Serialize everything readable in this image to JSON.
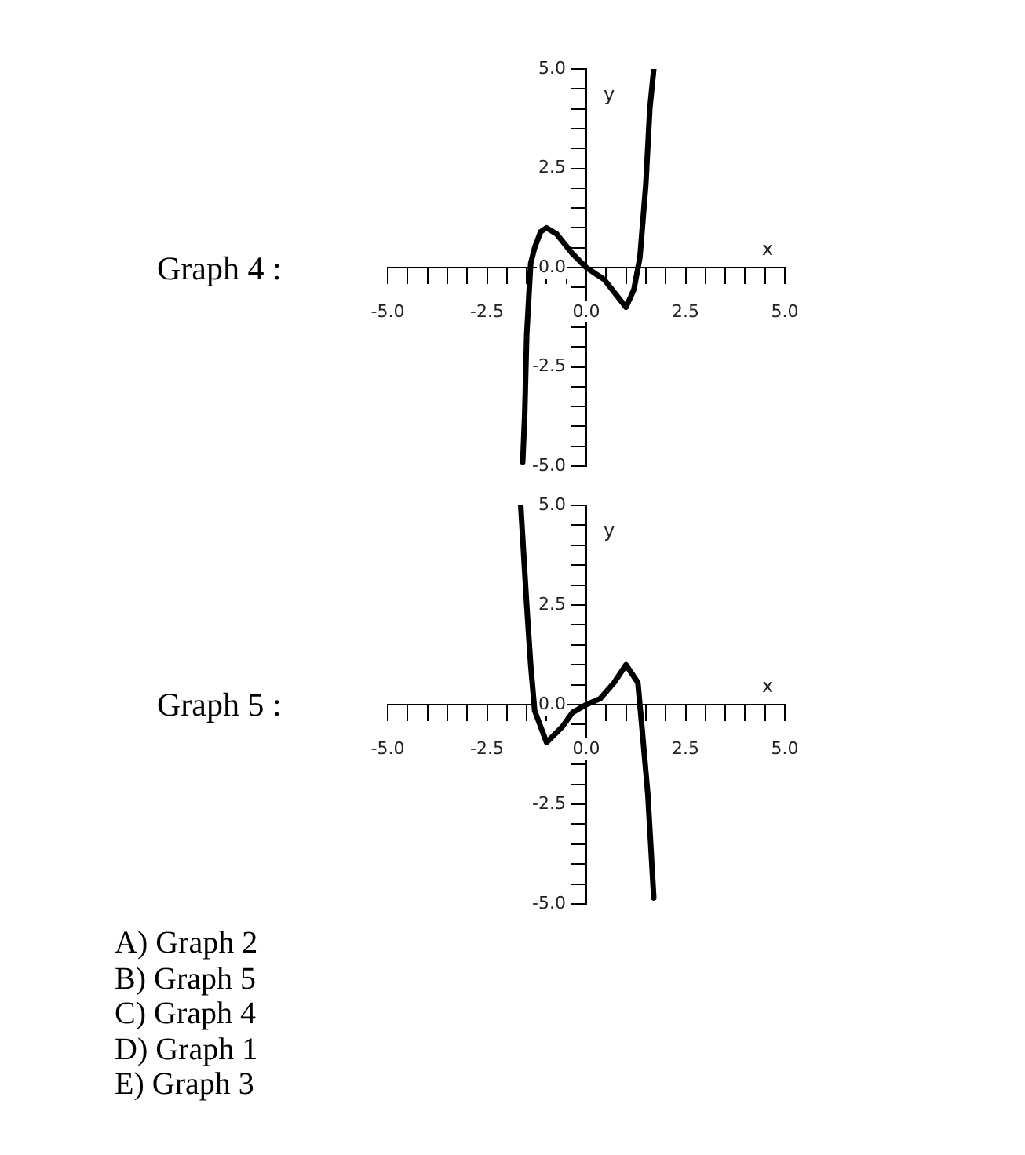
{
  "chart_data": [
    {
      "type": "line",
      "title": "Graph 4 :",
      "xlabel": "x",
      "ylabel": "y",
      "color": "#000000",
      "marker": "none",
      "line_style": "solid",
      "grid": false,
      "legend": false,
      "x": [
        -1.6,
        -1.55,
        -1.5,
        -1.4,
        -1.3,
        -1.15,
        -1.0,
        -0.75,
        -0.35,
        0,
        0.45,
        1.0,
        1.2,
        1.35,
        1.5,
        1.6,
        1.7
      ],
      "values": [
        -4.9,
        -3.7,
        -1.7,
        0.1,
        0.5,
        0.9,
        1.0,
        0.85,
        0.35,
        0,
        -0.3,
        -1.0,
        -0.55,
        0.25,
        2.1,
        4.0,
        5.0
      ],
      "xlim": [
        -5,
        5
      ],
      "ylim": [
        -5,
        5
      ],
      "xticks": [
        {
          "value": -5,
          "label": "-5.0"
        },
        {
          "value": -4.5,
          "label": null
        },
        {
          "value": -4,
          "label": null
        },
        {
          "value": -3.5,
          "label": null
        },
        {
          "value": -3,
          "label": null
        },
        {
          "value": -2.5,
          "label": "-2.5"
        },
        {
          "value": -2,
          "label": null
        },
        {
          "value": -1.5,
          "label": null
        },
        {
          "value": -1,
          "label": null
        },
        {
          "value": -0.5,
          "label": null
        },
        {
          "value": 0,
          "label": "0.0"
        },
        {
          "value": 0.5,
          "label": null
        },
        {
          "value": 1,
          "label": null
        },
        {
          "value": 1.5,
          "label": null
        },
        {
          "value": 2,
          "label": null
        },
        {
          "value": 2.5,
          "label": "2.5"
        },
        {
          "value": 3,
          "label": null
        },
        {
          "value": 3.5,
          "label": null
        },
        {
          "value": 4,
          "label": null
        },
        {
          "value": 4.5,
          "label": null
        },
        {
          "value": 5,
          "label": "5.0"
        }
      ],
      "yticks": [
        {
          "value": -5,
          "label": "-5.0"
        },
        {
          "value": -4.5,
          "label": null
        },
        {
          "value": -4,
          "label": null
        },
        {
          "value": -3.5,
          "label": null
        },
        {
          "value": -3,
          "label": null
        },
        {
          "value": -2.5,
          "label": "-2.5"
        },
        {
          "value": -2,
          "label": null
        },
        {
          "value": -1.5,
          "label": null
        },
        {
          "value": -1,
          "label": null
        },
        {
          "value": -0.5,
          "label": null
        },
        {
          "value": 0,
          "label": "0.0"
        },
        {
          "value": 0.5,
          "label": null
        },
        {
          "value": 1,
          "label": null
        },
        {
          "value": 1.5,
          "label": null
        },
        {
          "value": 2,
          "label": null
        },
        {
          "value": 2.5,
          "label": "2.5"
        },
        {
          "value": 3,
          "label": null
        },
        {
          "value": 3.5,
          "label": null
        },
        {
          "value": 4,
          "label": null
        },
        {
          "value": 4.5,
          "label": null
        },
        {
          "value": 5,
          "label": "5.0"
        }
      ]
    },
    {
      "type": "line",
      "title": "Graph 5 :",
      "xlabel": "x",
      "ylabel": "y",
      "color": "#000000",
      "marker": "none",
      "line_style": "solid",
      "grid": false,
      "legend": false,
      "x": [
        -1.65,
        -1.5,
        -1.4,
        -1.3,
        -1.0,
        -0.6,
        -0.35,
        0,
        0.35,
        0.7,
        1.0,
        1.3,
        1.4,
        1.55,
        1.7
      ],
      "values": [
        5.0,
        2.5,
        1.0,
        -0.15,
        -0.95,
        -0.55,
        -0.2,
        0,
        0.15,
        0.55,
        1.0,
        0.55,
        -0.55,
        -2.25,
        -4.85
      ],
      "xlim": [
        -5,
        5
      ],
      "ylim": [
        -5,
        5
      ],
      "xticks": [
        {
          "value": -5,
          "label": "-5.0"
        },
        {
          "value": -4.5,
          "label": null
        },
        {
          "value": -4,
          "label": null
        },
        {
          "value": -3.5,
          "label": null
        },
        {
          "value": -3,
          "label": null
        },
        {
          "value": -2.5,
          "label": "-2.5"
        },
        {
          "value": -2,
          "label": null
        },
        {
          "value": -1.5,
          "label": null
        },
        {
          "value": -1,
          "label": null
        },
        {
          "value": -0.5,
          "label": null
        },
        {
          "value": 0,
          "label": "0.0"
        },
        {
          "value": 0.5,
          "label": null
        },
        {
          "value": 1,
          "label": null
        },
        {
          "value": 1.5,
          "label": null
        },
        {
          "value": 2,
          "label": null
        },
        {
          "value": 2.5,
          "label": "2.5"
        },
        {
          "value": 3,
          "label": null
        },
        {
          "value": 3.5,
          "label": null
        },
        {
          "value": 4,
          "label": null
        },
        {
          "value": 4.5,
          "label": null
        },
        {
          "value": 5,
          "label": "5.0"
        }
      ],
      "yticks": [
        {
          "value": -5,
          "label": "-5.0"
        },
        {
          "value": -4.5,
          "label": null
        },
        {
          "value": -4,
          "label": null
        },
        {
          "value": -3.5,
          "label": null
        },
        {
          "value": -3,
          "label": null
        },
        {
          "value": -2.5,
          "label": "-2.5"
        },
        {
          "value": -2,
          "label": null
        },
        {
          "value": -1.5,
          "label": null
        },
        {
          "value": -1,
          "label": null
        },
        {
          "value": -0.5,
          "label": null
        },
        {
          "value": 0,
          "label": "0.0"
        },
        {
          "value": 0.5,
          "label": null
        },
        {
          "value": 1,
          "label": null
        },
        {
          "value": 1.5,
          "label": null
        },
        {
          "value": 2,
          "label": null
        },
        {
          "value": 2.5,
          "label": "2.5"
        },
        {
          "value": 3,
          "label": null
        },
        {
          "value": 3.5,
          "label": null
        },
        {
          "value": 4,
          "label": null
        },
        {
          "value": 4.5,
          "label": null
        },
        {
          "value": 5,
          "label": "5.0"
        }
      ],
      "annotations": [
        "A) Graph 2",
        "B) Graph 5",
        "C) Graph 4",
        "D) Graph 1",
        "E) Graph 3"
      ]
    }
  ]
}
